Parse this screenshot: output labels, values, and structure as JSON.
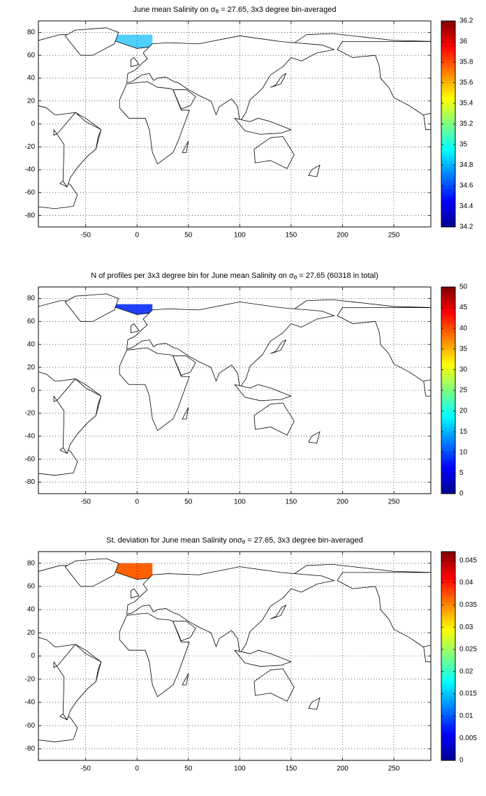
{
  "chart_data": [
    {
      "type": "map",
      "title": [
        "June mean Salinity on σ",
        "θ",
        " = 27.65, 3x3 degree bin-averaged"
      ],
      "xlim": [
        -96,
        286
      ],
      "ylim": [
        -90,
        90
      ],
      "xticks": [
        -50,
        0,
        50,
        100,
        150,
        200,
        250
      ],
      "yticks": [
        -80,
        -60,
        -40,
        -20,
        0,
        20,
        40,
        60,
        80
      ],
      "grid": true,
      "colorbar": {
        "colormap": "jet",
        "clim": [
          34.2,
          36.2
        ],
        "ticks": [
          34.2,
          34.4,
          34.6,
          34.8,
          35,
          35.2,
          35.4,
          35.6,
          35.8,
          36,
          36.2
        ]
      }
    },
    {
      "type": "map",
      "title": [
        "N of profiles per 3x3 degree bin for June mean Salinity on σ",
        "θ",
        " = 27.65 (60318 in total)"
      ],
      "xlim": [
        -96,
        286
      ],
      "ylim": [
        -90,
        90
      ],
      "xticks": [
        -50,
        0,
        50,
        100,
        150,
        200,
        250
      ],
      "yticks": [
        -80,
        -60,
        -40,
        -20,
        0,
        20,
        40,
        60,
        80
      ],
      "grid": true,
      "colorbar": {
        "colormap": "jet",
        "clim": [
          0,
          50
        ],
        "ticks": [
          0,
          5,
          10,
          15,
          20,
          25,
          30,
          35,
          40,
          45,
          50
        ]
      }
    },
    {
      "type": "map",
      "title": [
        "St. deviation for June mean Salinity onσ",
        "θ",
        " = 27.65, 3x3 degree bin-averaged"
      ],
      "xlim": [
        -96,
        286
      ],
      "ylim": [
        -90,
        90
      ],
      "xticks": [
        -50,
        0,
        50,
        100,
        150,
        200,
        250
      ],
      "yticks": [
        -80,
        -60,
        -40,
        -20,
        0,
        20,
        40,
        60,
        80
      ],
      "grid": true,
      "colorbar": {
        "colormap": "jet",
        "clim": [
          0,
          0.047
        ],
        "ticks": [
          0,
          0.005,
          0.01,
          0.015,
          0.02,
          0.025,
          0.03,
          0.035,
          0.04,
          0.045
        ]
      }
    }
  ]
}
